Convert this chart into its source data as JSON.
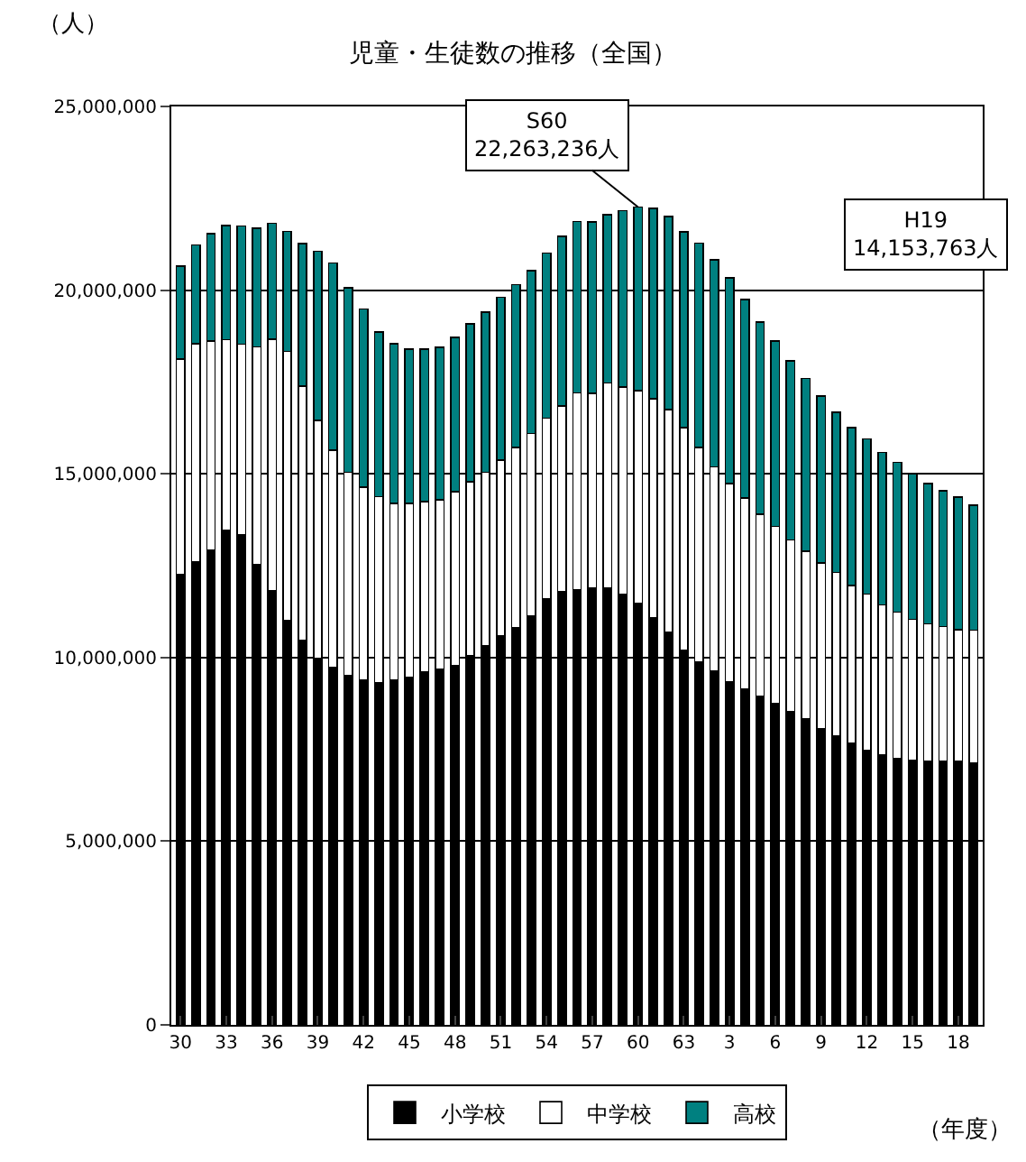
{
  "chart_data": {
    "type": "bar",
    "stacked": true,
    "title": "児童・生徒数の推移（全国）",
    "ylabel": "（人）",
    "xlabel": "（年度）",
    "categories": [
      "30",
      null,
      null,
      "33",
      null,
      null,
      "36",
      null,
      null,
      "39",
      null,
      null,
      "42",
      null,
      null,
      "45",
      null,
      null,
      "48",
      null,
      null,
      "51",
      null,
      null,
      "54",
      null,
      null,
      "57",
      null,
      null,
      "60",
      null,
      null,
      "63",
      null,
      null,
      "3",
      null,
      null,
      "6",
      null,
      null,
      "9",
      null,
      null,
      "12",
      null,
      null,
      "15",
      null,
      null,
      "18",
      null
    ],
    "series": [
      {
        "name": "小学校",
        "color": "#000000",
        "values": [
          12270000,
          12610000,
          12930000,
          13460000,
          13330000,
          12530000,
          11820000,
          11000000,
          10470000,
          9980000,
          9740000,
          9520000,
          9390000,
          9310000,
          9390000,
          9470000,
          9600000,
          9670000,
          9790000,
          10060000,
          10320000,
          10600000,
          10810000,
          11140000,
          11590000,
          11790000,
          11850000,
          11880000,
          11880000,
          11720000,
          11470000,
          11080000,
          10680000,
          10190000,
          9870000,
          9630000,
          9340000,
          9150000,
          8940000,
          8740000,
          8530000,
          8340000,
          8070000,
          7860000,
          7660000,
          7460000,
          7340000,
          7260000,
          7210000,
          7180000,
          7180000,
          7180000,
          7130000
        ]
      },
      {
        "name": "中学校",
        "color": "#ffffff",
        "values": [
          5860000,
          5930000,
          5680000,
          5190000,
          5200000,
          5930000,
          6840000,
          7330000,
          6920000,
          6470000,
          5910000,
          5520000,
          5250000,
          5070000,
          4800000,
          4720000,
          4650000,
          4620000,
          4730000,
          4720000,
          4720000,
          4780000,
          4900000,
          4960000,
          4930000,
          5060000,
          5350000,
          5310000,
          5590000,
          5640000,
          5800000,
          5960000,
          6070000,
          6070000,
          5850000,
          5560000,
          5390000,
          5190000,
          4960000,
          4830000,
          4670000,
          4560000,
          4510000,
          4460000,
          4300000,
          4270000,
          4090000,
          3980000,
          3830000,
          3740000,
          3660000,
          3570000,
          3610000
        ]
      },
      {
        "name": "高校",
        "color": "#008080",
        "values": [
          2530000,
          2690000,
          2930000,
          3110000,
          3220000,
          3220000,
          3160000,
          3270000,
          3880000,
          4610000,
          5090000,
          5020000,
          4850000,
          4480000,
          4350000,
          4200000,
          4140000,
          4150000,
          4200000,
          4300000,
          4360000,
          4430000,
          4440000,
          4430000,
          4490000,
          4620000,
          4670000,
          4670000,
          4590000,
          4800000,
          4990000,
          5190000,
          5250000,
          5330000,
          5560000,
          5640000,
          5600000,
          5410000,
          5230000,
          5040000,
          4880000,
          4700000,
          4540000,
          4350000,
          4300000,
          4220000,
          4150000,
          4070000,
          3950000,
          3820000,
          3700000,
          3620000,
          3410000
        ]
      }
    ],
    "ylim": [
      0,
      25000000
    ],
    "yticks": [
      0,
      {
        "value": 5000000,
        "label": "5,000,000"
      },
      {
        "value": 10000000,
        "label": "10,000,000"
      },
      {
        "value": 15000000,
        "label": "15,000,000"
      },
      {
        "value": 20000000,
        "label": "20,000,000"
      },
      {
        "value": 25000000,
        "label": "25,000,000"
      }
    ],
    "grid": "y",
    "legend": "bottom",
    "annotations": [
      {
        "text": "S60\n22,263,236人",
        "x": "60",
        "y": 22263236
      },
      "H19\n14,153,763人"
    ]
  }
}
